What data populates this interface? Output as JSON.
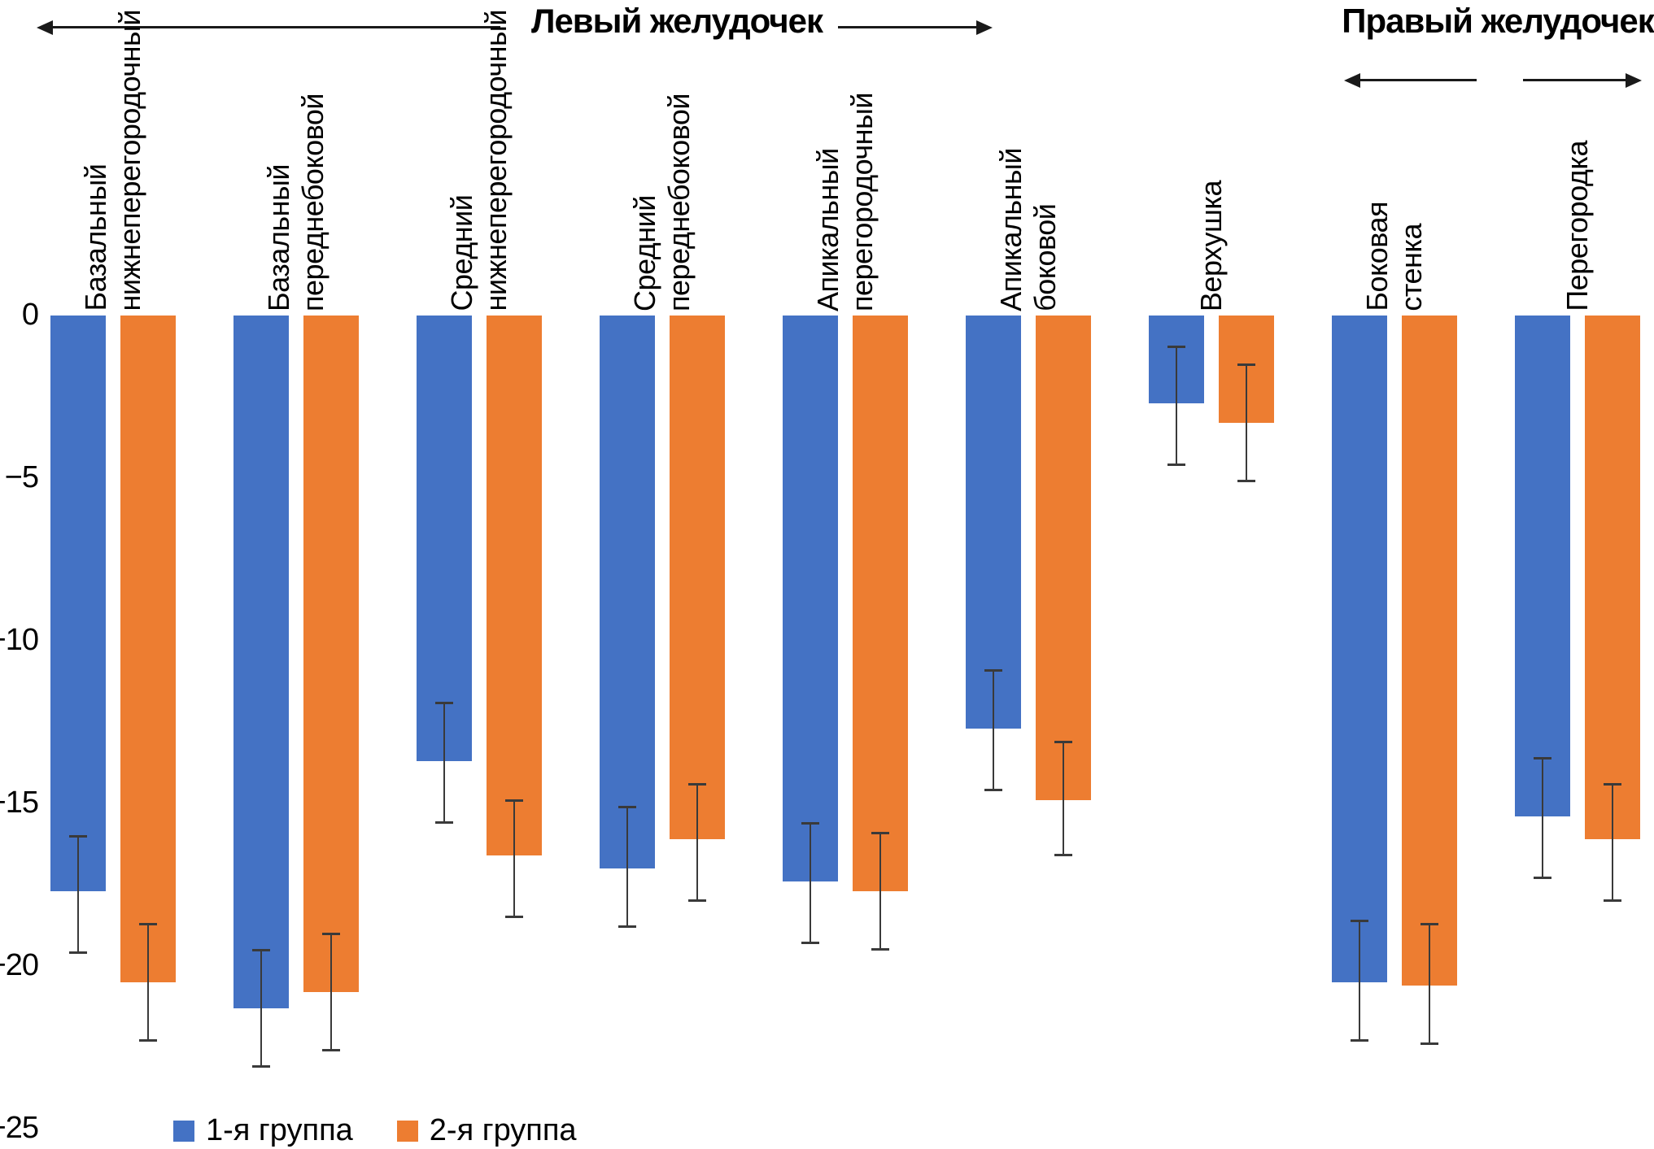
{
  "chart_data": {
    "type": "bar",
    "orientation": "vertical-negative",
    "sections": [
      {
        "label": "Левый желудочек",
        "categories_span": [
          0,
          6
        ]
      },
      {
        "label": "Правый желудочек",
        "categories_span": [
          7,
          8
        ]
      }
    ],
    "categories": [
      [
        "Базальный",
        "нижнеперегородочный"
      ],
      [
        "Базальный",
        "переднебоковой"
      ],
      [
        "Средний",
        "нижнеперегородочный"
      ],
      [
        "Средний",
        "переднебоковой"
      ],
      [
        "Апикальный",
        "перегородочный"
      ],
      [
        "Апикальный",
        "боковой"
      ],
      [
        "Верхушка"
      ],
      [
        "Боковая",
        "стенка"
      ],
      [
        "Перегородка"
      ]
    ],
    "series": [
      {
        "name": "1-я группа",
        "color": "#4472C4",
        "values": [
          -17.7,
          -21.3,
          -13.7,
          -17.0,
          -17.4,
          -12.7,
          -2.7,
          -20.5,
          -15.4
        ],
        "error_high": [
          -16.0,
          -19.5,
          -11.9,
          -15.1,
          -15.6,
          -10.9,
          -0.95,
          -18.6,
          -13.6
        ],
        "error_low": [
          -19.6,
          -23.1,
          -15.6,
          -18.8,
          -19.3,
          -14.6,
          -4.6,
          -22.3,
          -17.3
        ]
      },
      {
        "name": "2-я группа",
        "color": "#ED7D31",
        "values": [
          -20.5,
          -20.8,
          -16.6,
          -16.1,
          -17.7,
          -14.9,
          -3.3,
          -20.6,
          -16.1
        ],
        "error_high": [
          -18.7,
          -19.0,
          -14.9,
          -14.4,
          -15.9,
          -13.1,
          -1.5,
          -18.7,
          -14.4
        ],
        "error_low": [
          -22.3,
          -22.6,
          -18.5,
          -18.0,
          -19.5,
          -16.6,
          -5.1,
          -22.4,
          -18.0
        ]
      }
    ],
    "ylim": [
      0,
      -25
    ],
    "yticks": [
      "0",
      "−5",
      "−10",
      "−15",
      "−20",
      "−25"
    ],
    "grid": false,
    "axis_lines": false,
    "legend_position": "bottom-left",
    "error_bar_color": "#3a3a3a"
  }
}
